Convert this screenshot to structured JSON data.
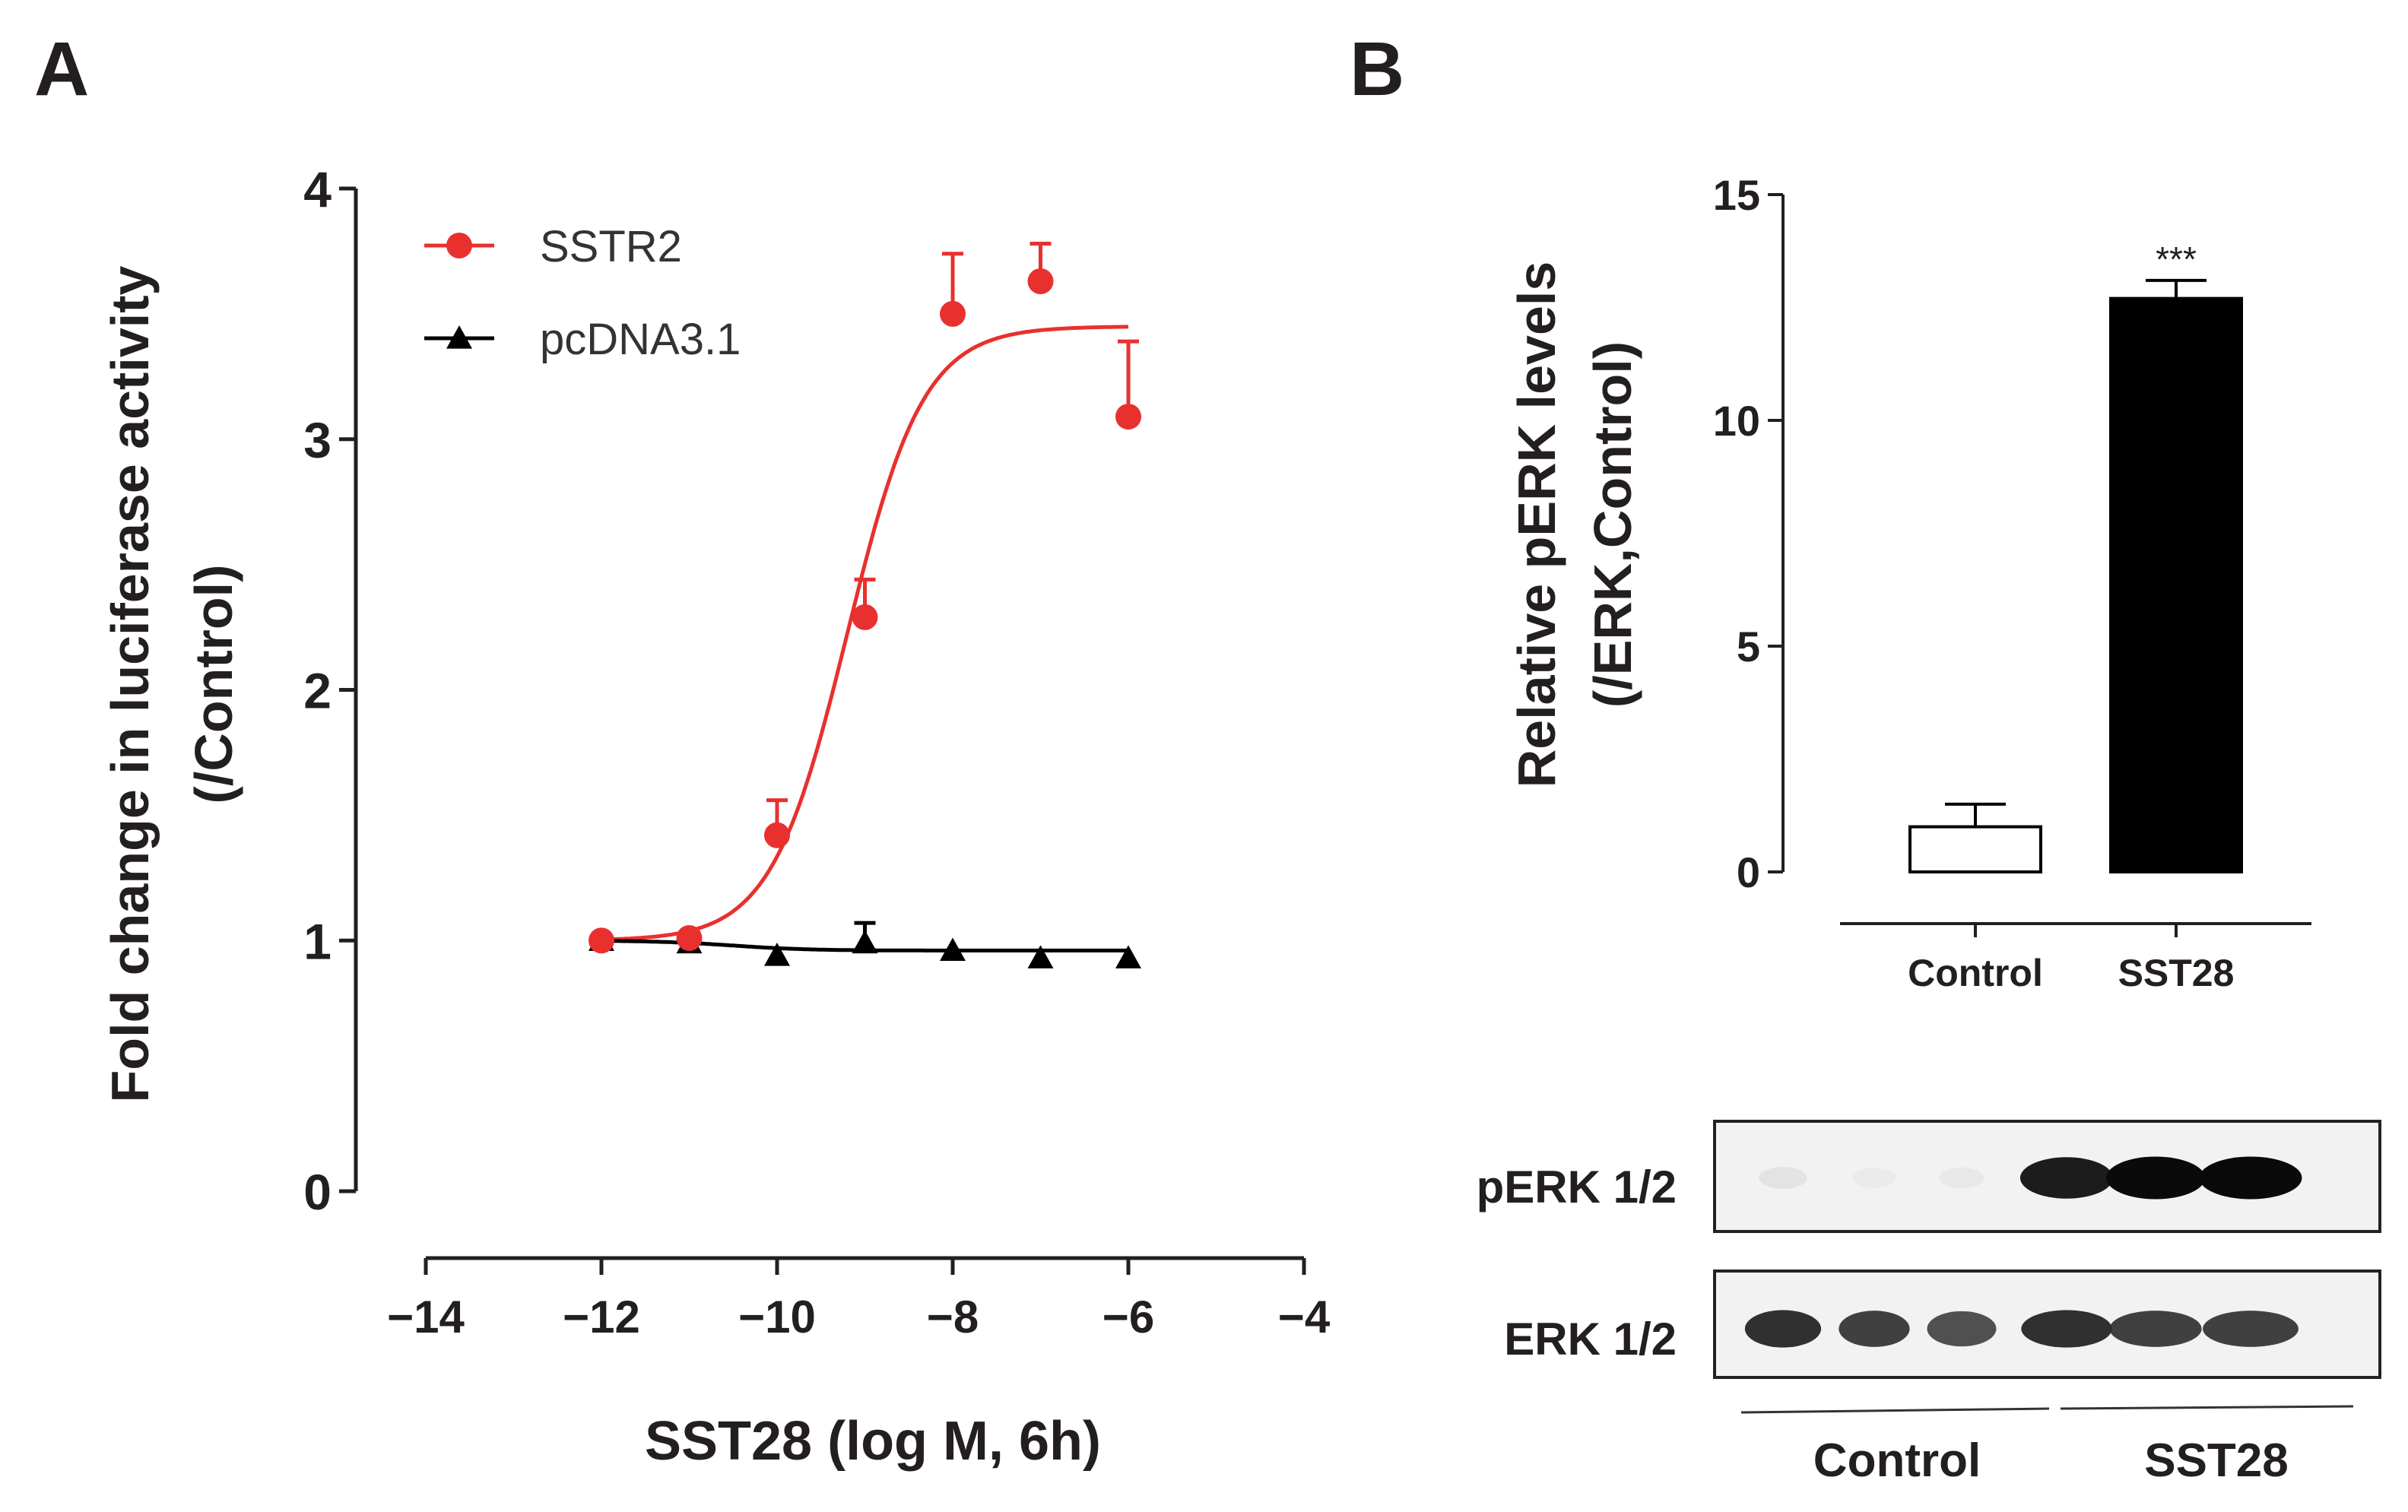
{
  "panel_a_letter": "A",
  "panel_b_letter": "B",
  "chart_data": [
    {
      "type": "line",
      "panel": "A",
      "xlabel": "SST28 (log M, 6h)",
      "ylabel": "Fold change in luciferase activity",
      "ylabel_line2": "(/Control)",
      "xlim": [
        -14,
        -4
      ],
      "ylim": [
        0,
        4
      ],
      "x_ticks": [
        -14,
        -12,
        -10,
        -8,
        -6,
        -4
      ],
      "x_tick_labels": [
        "−14",
        "−12",
        "−10",
        "−8",
        "−6",
        "−4"
      ],
      "y_ticks": [
        0,
        1,
        2,
        3,
        4
      ],
      "y_tick_labels": [
        "0",
        "1",
        "2",
        "3",
        "4"
      ],
      "legend_position": "top-left",
      "series": [
        {
          "name": "SSTR2",
          "color": "#e8312f",
          "marker": "circle",
          "x": [
            -12,
            -11,
            -10,
            -9,
            -8,
            -7,
            -6
          ],
          "y": [
            1.0,
            1.01,
            1.42,
            2.29,
            3.5,
            3.63,
            3.09
          ],
          "error": [
            0.0,
            0.0,
            0.14,
            0.15,
            0.24,
            0.15,
            0.3
          ],
          "fit": {
            "bottom": 1.0,
            "top": 3.45,
            "logEC50": -9.2,
            "hill": 1.0
          }
        },
        {
          "name": "pcDNA3.1",
          "color": "#000000",
          "marker": "triangle",
          "x": [
            -12,
            -11,
            -10,
            -9,
            -8,
            -7,
            -6
          ],
          "y": [
            1.0,
            0.99,
            0.94,
            0.99,
            0.96,
            0.93,
            0.93
          ],
          "error": [
            0.0,
            0.0,
            0.0,
            0.08,
            0.0,
            0.0,
            0.0
          ],
          "fit": {
            "bottom": 0.96,
            "top": 1.0,
            "logEC50": -10.5,
            "hill": -1.0
          }
        }
      ]
    },
    {
      "type": "bar",
      "panel": "B",
      "ylabel": "Relative pERK levels",
      "ylabel_line2": "(/ERK,Control)",
      "ylim": [
        0,
        15
      ],
      "y_ticks": [
        0,
        5,
        10,
        15
      ],
      "y_tick_labels": [
        "0",
        "5",
        "10",
        "15"
      ],
      "categories": [
        "Control",
        "SST28"
      ],
      "values": [
        1.0,
        12.7
      ],
      "errors": [
        0.5,
        0.4
      ],
      "bar_colors": [
        "#ffffff",
        "#000000"
      ],
      "annotations": [
        "",
        "***"
      ]
    }
  ],
  "western_blot": {
    "rows": [
      {
        "label": "pERK 1/2",
        "intensities": [
          0.12,
          0.05,
          0.08,
          0.95,
          1.0,
          1.0
        ]
      },
      {
        "label": "ERK 1/2",
        "intensities": [
          0.9,
          0.85,
          0.8,
          0.9,
          0.85,
          0.85
        ]
      }
    ],
    "groups": [
      "Control",
      "SST28"
    ]
  }
}
